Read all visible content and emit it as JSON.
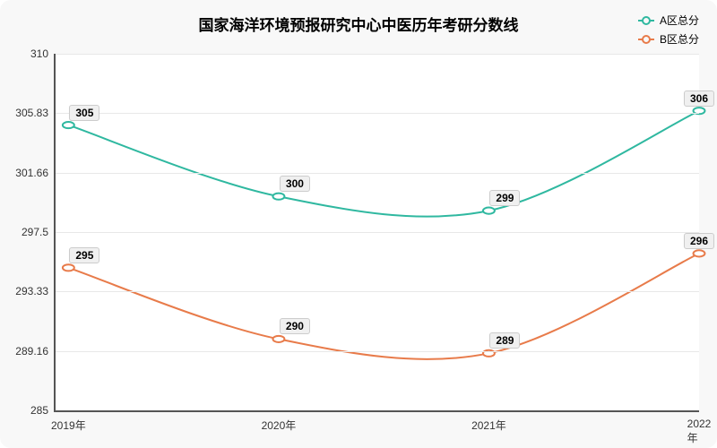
{
  "chart": {
    "type": "line",
    "title": "国家海洋环境预报研究中心中医历年考研分数线",
    "title_fontsize": 17,
    "background_color": "#f8f8f8",
    "plot_background": "#ffffff",
    "grid_color": "#e8e8e8",
    "axis_color": "#555555",
    "label_fontsize": 12,
    "point_label_fontsize": 12,
    "ylim": [
      285,
      310
    ],
    "yticks": [
      285,
      289.16,
      293.33,
      297.5,
      301.66,
      305.83,
      310
    ],
    "ytick_labels": [
      "285",
      "289.16",
      "293.33",
      "297.5",
      "301.66",
      "305.83",
      "310"
    ],
    "xcategories": [
      "2019年",
      "2020年",
      "2021年",
      "2022年"
    ],
    "xpositions_pct": [
      2,
      34.67,
      67.33,
      100
    ],
    "legend": {
      "position": "top-right"
    },
    "series": [
      {
        "name": "A区总分",
        "color": "#2fb8a0",
        "line_width": 2,
        "marker": "circle",
        "values": [
          305,
          300,
          299,
          306
        ],
        "smooth": true
      },
      {
        "name": "B区总分",
        "color": "#e87b4a",
        "line_width": 2,
        "marker": "circle",
        "values": [
          295,
          290,
          289,
          296
        ],
        "smooth": true
      }
    ]
  }
}
